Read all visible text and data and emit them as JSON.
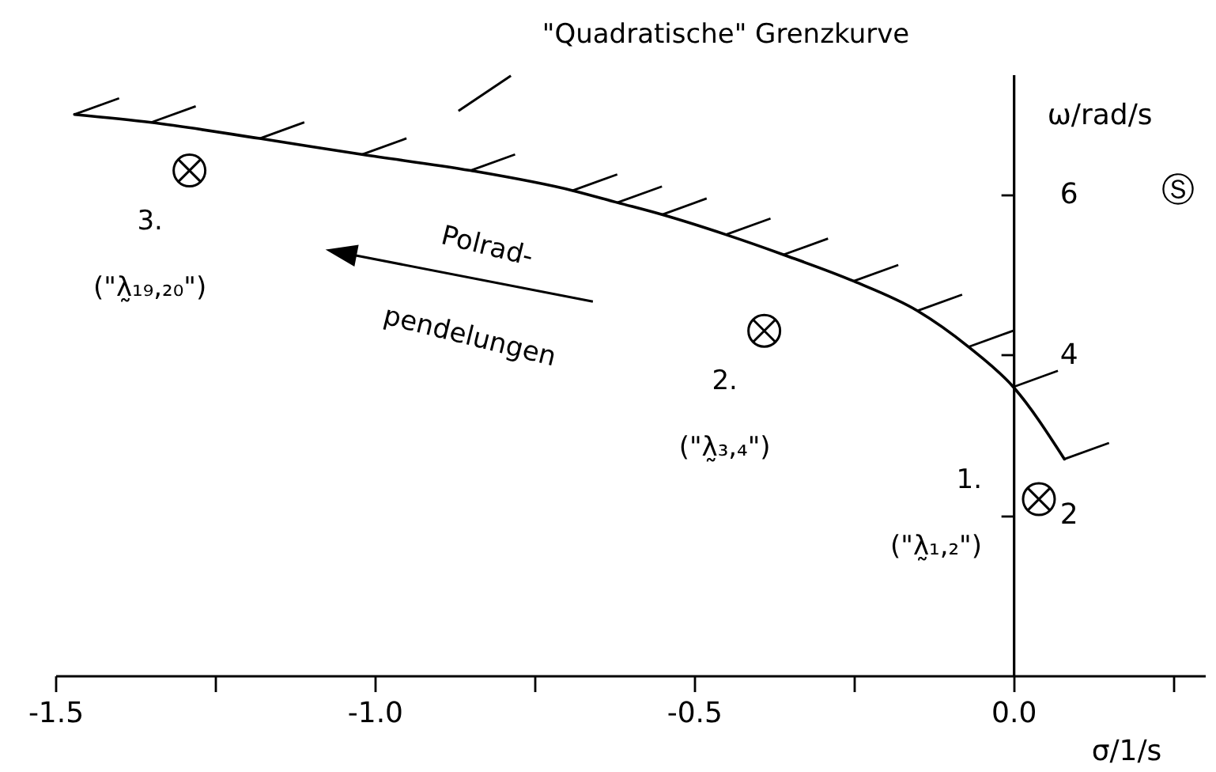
{
  "chart_data": {
    "type": "line",
    "xlabel": "σ/1/s",
    "ylabel": "ω/rad/s",
    "xlim": [
      -1.5,
      0.3
    ],
    "ylim": [
      0,
      7.5
    ],
    "xticks": [
      -1.5,
      {
        "value": -1.25,
        "label": null
      },
      {
        "value": -1.0,
        "label": "-1.0"
      },
      {
        "value": -0.75,
        "label": null
      },
      -0.5,
      {
        "value": -0.25,
        "label": null
      },
      {
        "value": 0.0,
        "label": "0.0"
      },
      {
        "value": 0.25,
        "label": null
      }
    ],
    "yticks": [
      2,
      4,
      6
    ],
    "series": [
      {
        "name": "\"Quadratische\" Grenzkurve",
        "color": "#000000",
        "x": [
          -1.47,
          -1.35,
          -1.18,
          -1.02,
          -0.85,
          -0.69,
          -0.62,
          -0.55,
          -0.45,
          -0.36,
          -0.25,
          -0.15,
          -0.07,
          0.0,
          0.08
        ],
        "values": [
          7.0,
          6.9,
          6.7,
          6.5,
          6.3,
          6.05,
          5.9,
          5.75,
          5.5,
          5.25,
          4.92,
          4.55,
          4.1,
          3.6,
          2.7
        ]
      },
      {
        "type": "scatter",
        "color": "#000000",
        "marker": "cross",
        "x": [
          0.04,
          -0.39,
          -1.29
        ],
        "values": [
          2.2,
          4.3,
          6.3
        ]
      }
    ],
    "annotations": [
      {
        "text": "1.",
        "x": 0.04,
        "y": 2.2
      },
      "(\"λ̰₁,₂\")",
      {
        "text": "2.",
        "x": -0.39,
        "y": 4.3
      },
      "(\"λ̰₃,₄\")",
      {
        "text": "3.",
        "x": -1.29,
        "y": 6.3
      },
      "(\"λ̰₁₉,₂₀\")",
      "Polrad-",
      "pendelungen",
      "Ⓢ"
    ]
  }
}
